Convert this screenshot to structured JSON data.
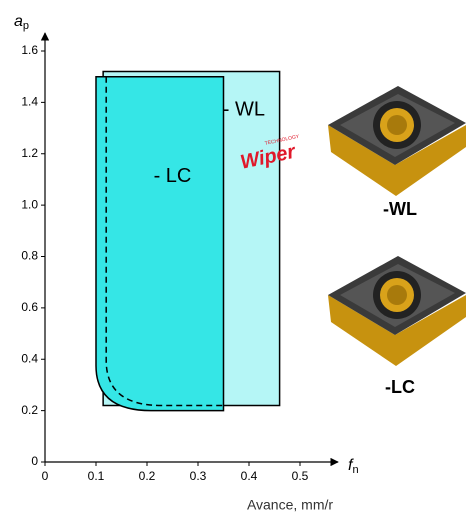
{
  "chart_data": {
    "type": "area-regions",
    "ylabel": {
      "main": "a",
      "sub": "p"
    },
    "xlabel": {
      "main": "f",
      "sub": "n"
    },
    "xunit_label": "Avance, mm/r",
    "xlim": [
      0,
      0.5
    ],
    "ylim": [
      0,
      1.6
    ],
    "xticks": [
      0,
      0.1,
      0.2,
      0.3,
      0.4,
      0.5
    ],
    "yticks": [
      0,
      0.2,
      0.4,
      0.6,
      0.8,
      {
        "value": 1,
        "label": "1.0"
      },
      1.2,
      1.4,
      1.6
    ],
    "regions": [
      {
        "name": "- WL",
        "x": [
          0.114,
          0.46
        ],
        "y": [
          0.22,
          1.52
        ],
        "color": "#b5f6f6",
        "label_at": [
          0.39,
          1.37
        ]
      },
      {
        "name": "- LC",
        "x": [
          0.1,
          0.35
        ],
        "y": [
          0.2,
          1.5
        ],
        "color": "#35e6e6",
        "rounded_corner": "bottom-left",
        "label_at": [
          0.25,
          1.11
        ]
      },
      {
        "x": [
          0.12,
          0.35
        ],
        "y": [
          0.22,
          1.5
        ],
        "style": "dashed",
        "rounded_corner": "bottom-left"
      }
    ],
    "logo": {
      "main": "Wiper",
      "small": "TECHNOLOGY"
    },
    "inserts": [
      "-WL",
      "-LC"
    ]
  }
}
